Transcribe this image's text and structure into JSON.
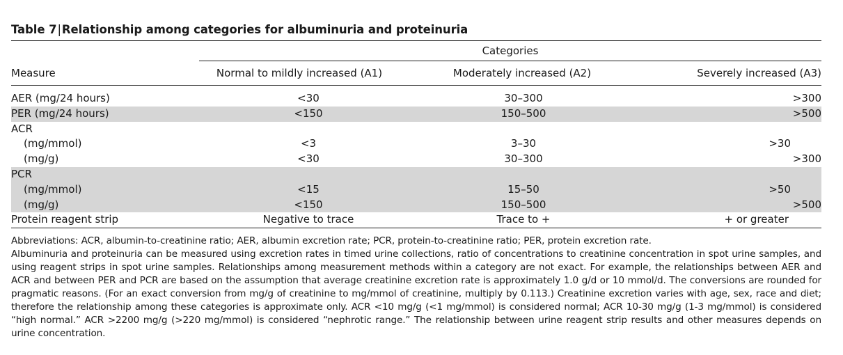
{
  "caption": {
    "label": "Table 7",
    "separator": "|",
    "title": "Relationship among categories for albuminuria and proteinuria"
  },
  "table": {
    "group_header": "Categories",
    "columns": [
      "Measure",
      "Normal to mildly increased (A1)",
      "Moderately increased (A2)",
      "Severely increased (A3)"
    ],
    "rows": [
      {
        "measure": "AER (mg/24 hours)",
        "a1": "<30",
        "a2": "30–300",
        "a3": ">300"
      },
      {
        "measure": "PER (mg/24 hours)",
        "a1": "<150",
        "a2": "150–500",
        "a3": ">500"
      },
      {
        "measure": "ACR"
      },
      {
        "measure": "(mg/mmol)",
        "a1": "<3",
        "a2": "3–30",
        "a3": ">30"
      },
      {
        "measure": "(mg/g)",
        "a1": "<30",
        "a2": "30–300",
        "a3": ">300"
      },
      {
        "measure": "PCR"
      },
      {
        "measure": "(mg/mmol)",
        "a1": "<15",
        "a2": "15–50",
        "a3": ">50"
      },
      {
        "measure": "(mg/g)",
        "a1": "<150",
        "a2": "150–500",
        "a3": ">500"
      },
      {
        "measure": "Protein reagent strip",
        "a1": "Negative to trace",
        "a2": "Trace to +",
        "a3": "+ or greater"
      }
    ]
  },
  "footnotes": {
    "abbreviations": "Abbreviations: ACR, albumin-to-creatinine ratio; AER, albumin excretion rate; PCR, protein-to-creatinine ratio; PER, protein excretion rate.",
    "note": "Albuminuria and proteinuria can be measured using excretion rates in timed urine collections, ratio of concentrations to creatinine concentration in spot urine samples, and using reagent strips in spot urine samples. Relationships among measurement methods within a category are not exact. For example, the relationships between AER and ACR and between PER and PCR are based on the assumption that average creatinine excretion rate is approximately 1.0 g/d or 10 mmol/d. The conversions are rounded for pragmatic reasons. (For an exact conversion from mg/g of creatinine to mg/mmol of creatinine, multiply by 0.113.) Creatinine excretion varies with age, sex, race and diet; therefore the relationship among these categories is approximate only. ACR <10 mg/g (<1 mg/mmol) is considered normal; ACR 10-30 mg/g (1-3 mg/mmol) is considered “high normal.” ACR >2200 mg/g (>220 mg/mmol) is considered “nephrotic range.” The relationship between urine reagent strip results and other measures depends on urine concentration."
  }
}
